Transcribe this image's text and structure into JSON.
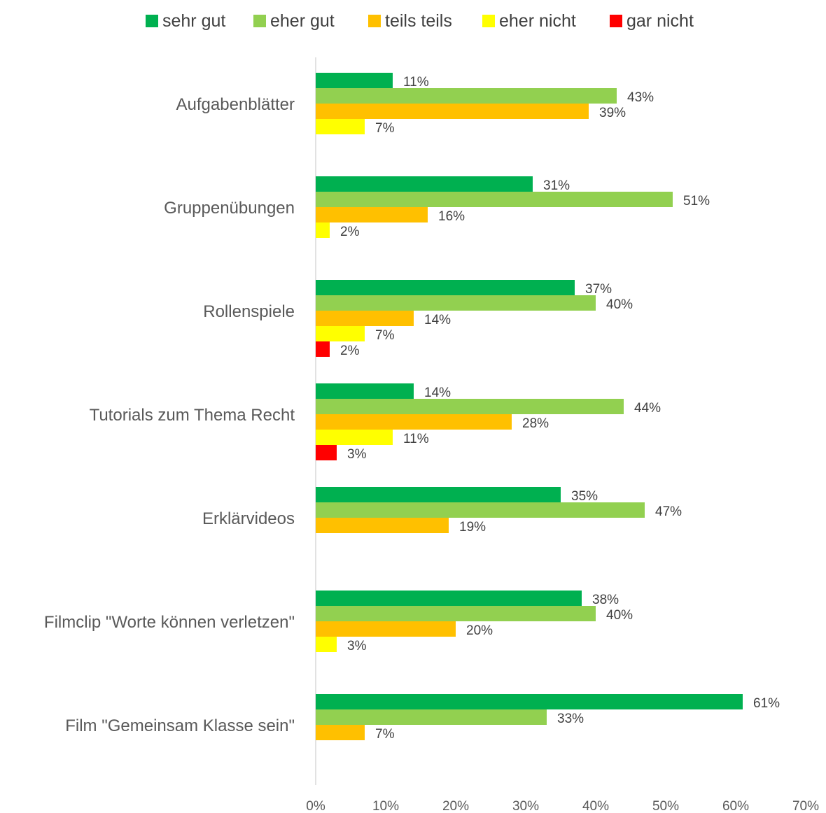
{
  "chart_data": {
    "type": "bar",
    "orientation": "horizontal",
    "categories": [
      "Aufgabenblätter",
      "Gruppenübungen",
      "Rollenspiele",
      "Tutorials zum Thema Recht",
      "Erklärvideos",
      "Filmclip \"Worte können verletzen\"",
      "Film \"Gemeinsam Klasse sein\""
    ],
    "series": [
      {
        "name": "sehr gut",
        "color": "#00b050",
        "values": [
          11,
          31,
          37,
          14,
          35,
          38,
          61
        ],
        "labels": [
          "11%",
          "31%",
          "37%",
          "14%",
          "35%",
          "38%",
          "61%"
        ]
      },
      {
        "name": "eher gut",
        "color": "#92d050",
        "values": [
          43,
          51,
          40,
          44,
          47,
          40,
          33
        ],
        "labels": [
          "43%",
          "51%",
          "40%",
          "44%",
          "47%",
          "40%",
          "33%"
        ]
      },
      {
        "name": "teils teils",
        "color": "#ffc000",
        "values": [
          39,
          16,
          14,
          28,
          19,
          20,
          7
        ],
        "labels": [
          "39%",
          "16%",
          "14%",
          "28%",
          "19%",
          "20%",
          "7%"
        ]
      },
      {
        "name": "eher nicht",
        "color": "#ffff00",
        "values": [
          7,
          2,
          7,
          11,
          null,
          3,
          null
        ],
        "labels": [
          "7%",
          "2%",
          "7%",
          "11%",
          null,
          "3%",
          null
        ]
      },
      {
        "name": "gar nicht",
        "color": "#ff0000",
        "values": [
          null,
          null,
          2,
          3,
          null,
          null,
          null
        ],
        "labels": [
          null,
          null,
          "2%",
          "3%",
          null,
          null,
          null
        ]
      }
    ],
    "xlim": [
      0,
      70
    ],
    "xticks": [
      0,
      10,
      20,
      30,
      40,
      50,
      60,
      70
    ],
    "xtick_labels": [
      "0%",
      "10%",
      "20%",
      "30%",
      "40%",
      "50%",
      "60%",
      "70%"
    ],
    "legend_position": "top",
    "grid": false,
    "title": "",
    "xlabel": "",
    "ylabel": ""
  }
}
